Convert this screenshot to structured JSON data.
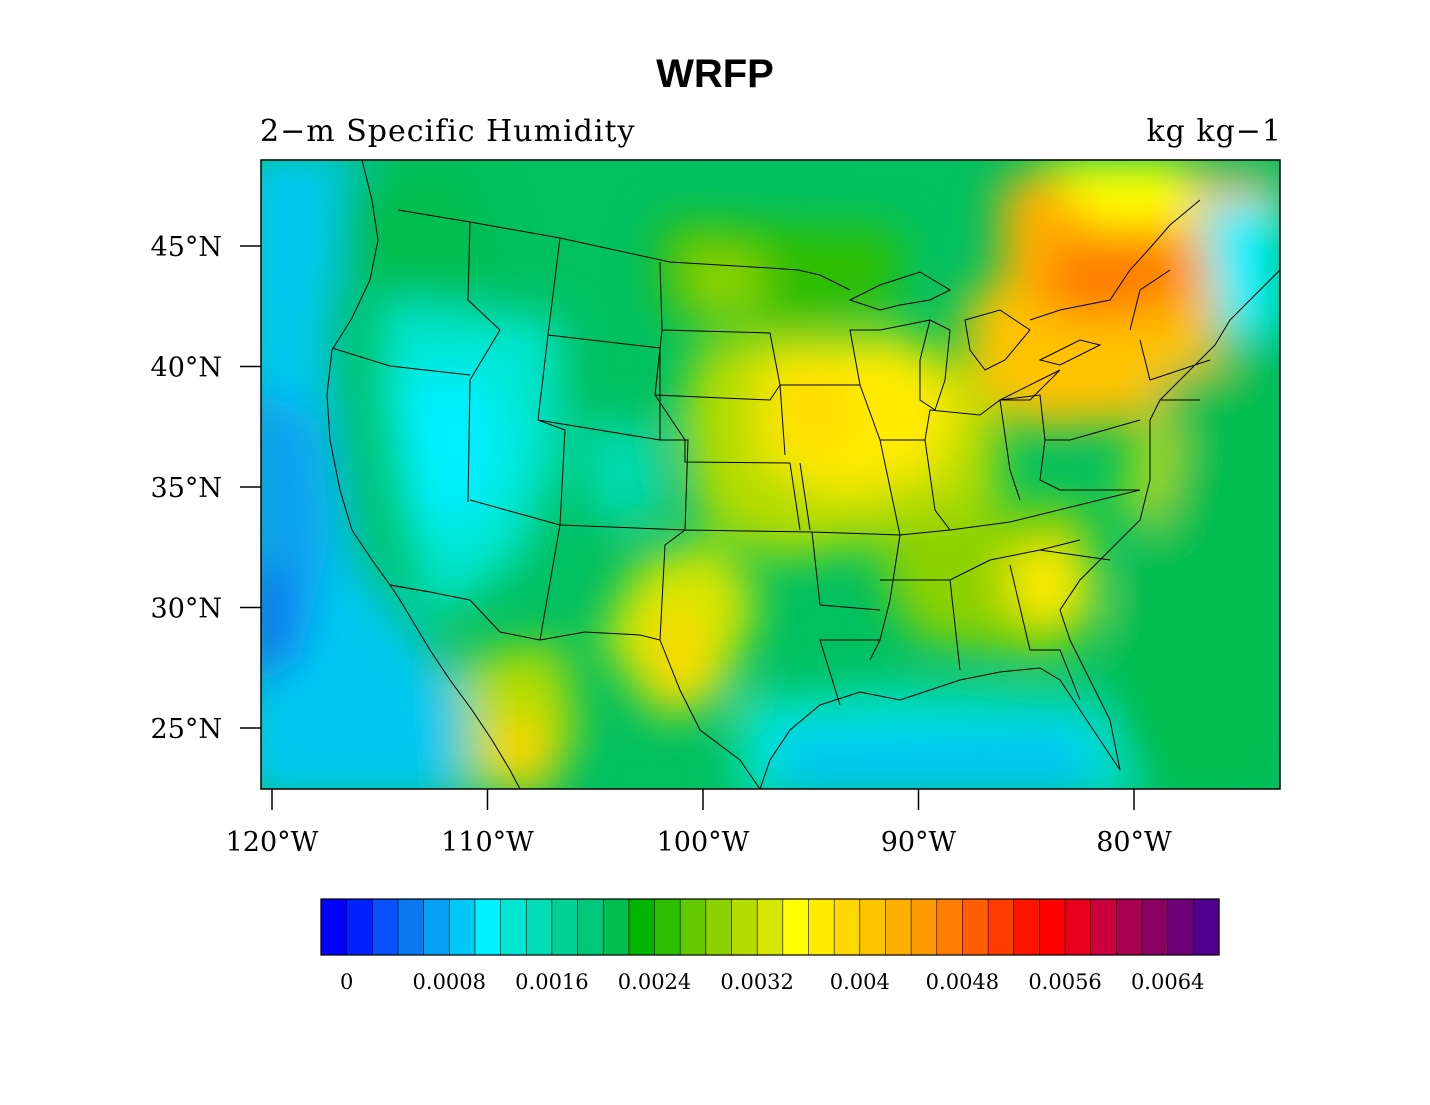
{
  "title": "WRFP",
  "left_subtitle": "2−m Specific Humidity",
  "right_subtitle": "kg kg−1",
  "axes": {
    "lat_ticks": [
      {
        "value": 45,
        "label": "45°N"
      },
      {
        "value": 40,
        "label": "40°N"
      },
      {
        "value": 35,
        "label": "35°N"
      },
      {
        "value": 30,
        "label": "30°N"
      },
      {
        "value": 25,
        "label": "25°N"
      }
    ],
    "lon_ticks": [
      {
        "value": -120,
        "label": "120°W"
      },
      {
        "value": -110,
        "label": "110°W"
      },
      {
        "value": -100,
        "label": "100°W"
      },
      {
        "value": -90,
        "label": "90°W"
      },
      {
        "value": -80,
        "label": "80°W"
      }
    ],
    "lat_range": [
      22.5,
      48.5
    ],
    "lon_range": [
      -120.5,
      -73.5
    ]
  },
  "colorbar": {
    "colors": [
      "#0000ff",
      "#0022ff",
      "#0a50ff",
      "#0a78f0",
      "#05a0f5",
      "#00c8f5",
      "#00f0ff",
      "#00e6d2",
      "#00dcb4",
      "#00d296",
      "#00c878",
      "#00be50",
      "#00b400",
      "#2dbe00",
      "#64c800",
      "#8cd200",
      "#b4dc00",
      "#d7e600",
      "#ffff00",
      "#ffeb00",
      "#ffd700",
      "#ffc300",
      "#ffaf00",
      "#ff9b00",
      "#ff7d00",
      "#ff5f00",
      "#ff3c00",
      "#ff1400",
      "#ff0000",
      "#e6001e",
      "#c8003c",
      "#aa0050",
      "#8c0064",
      "#6e0078",
      "#50008c"
    ],
    "labels": [
      {
        "value": 0,
        "text": "0"
      },
      {
        "value": 0.0008,
        "text": "0.0008"
      },
      {
        "value": 0.0016,
        "text": "0.0016"
      },
      {
        "value": 0.0024,
        "text": "0.0024"
      },
      {
        "value": 0.0032,
        "text": "0.0032"
      },
      {
        "value": 0.004,
        "text": "0.004"
      },
      {
        "value": 0.0048,
        "text": "0.0048"
      },
      {
        "value": 0.0056,
        "text": "0.0056"
      },
      {
        "value": 0.0064,
        "text": "0.0064"
      }
    ]
  }
}
